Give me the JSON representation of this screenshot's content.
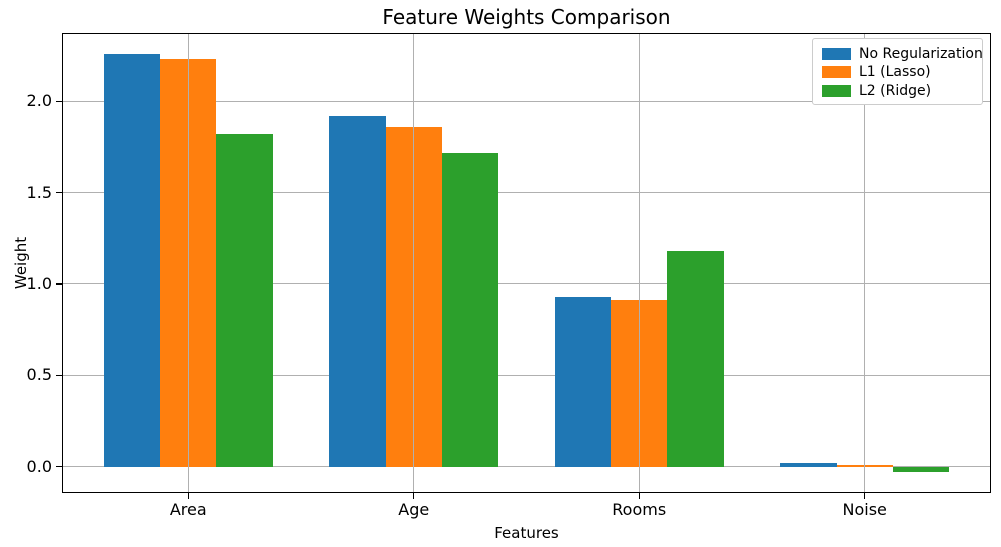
{
  "chart_data": {
    "type": "bar",
    "title": "Feature Weights Comparison",
    "xlabel": "Features",
    "ylabel": "Weight",
    "categories": [
      "Area",
      "Age",
      "Rooms",
      "Noise"
    ],
    "series": [
      {
        "name": "No Regularization",
        "color": "#1f77b4",
        "values": [
          2.26,
          1.92,
          0.93,
          0.02
        ]
      },
      {
        "name": "L1 (Lasso)",
        "color": "#ff7f0e",
        "values": [
          2.23,
          1.86,
          0.91,
          0.005
        ]
      },
      {
        "name": "L2 (Ridge)",
        "color": "#2ca02c",
        "values": [
          1.82,
          1.72,
          1.18,
          -0.03
        ]
      }
    ],
    "yticks": [
      0.0,
      0.5,
      1.0,
      1.5,
      2.0
    ],
    "ytick_labels": [
      "0.0",
      "0.5",
      "1.0",
      "1.5",
      "2.0"
    ],
    "ylim": [
      -0.145,
      2.375
    ],
    "xlim": [
      -0.56,
      3.56
    ],
    "bar_width": 0.25,
    "grid": true,
    "grid_color": "#b0b0b0",
    "background_color": "#ffffff",
    "legend": {
      "position": "upper right",
      "entries": [
        "No Regularization",
        "L1 (Lasso)",
        "L2 (Ridge)"
      ]
    }
  }
}
